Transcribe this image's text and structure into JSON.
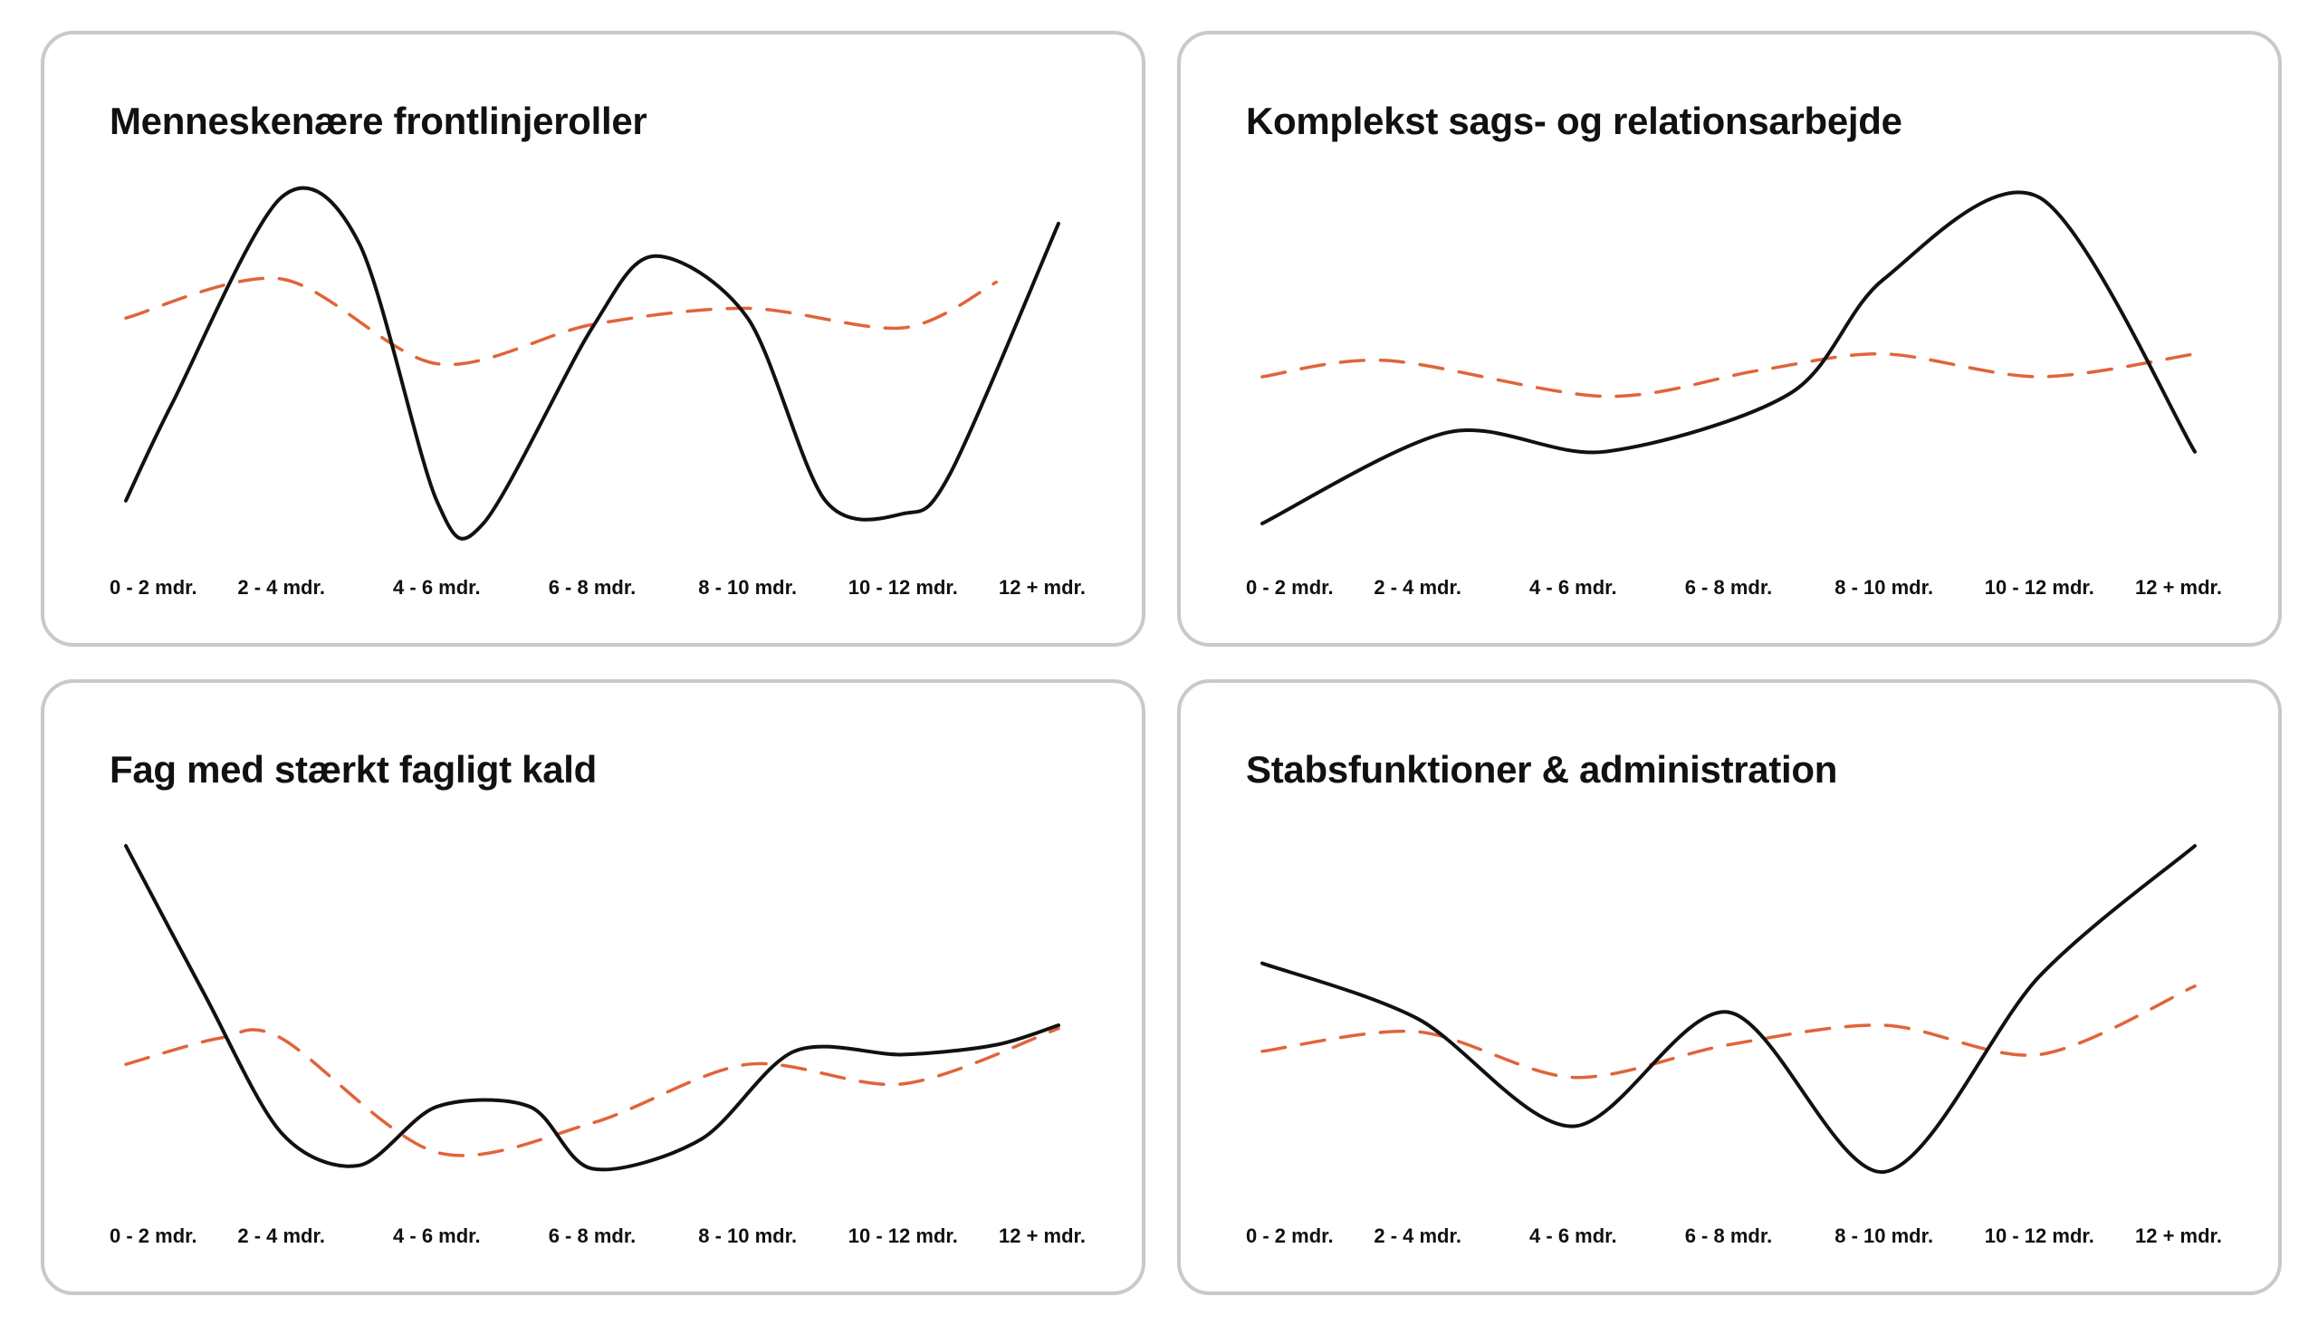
{
  "colors": {
    "solid_line": "#111111",
    "dashed_line": "#E0643A",
    "card_border": "#C9C9C9",
    "background": "#FFFFFF"
  },
  "chart_data": [
    {
      "type": "line",
      "title": "Menneskenære frontlinjeroller",
      "categories": [
        "0 - 2 mdr.",
        "2 - 4 mdr.",
        "4 - 6 mdr.",
        "6 - 8 mdr.",
        "8 - 10 mdr.",
        "10 - 12 mdr.",
        "12 + mdr."
      ],
      "ylim": [
        0,
        100
      ],
      "grid": false,
      "series": [
        {
          "style": "solid",
          "x": [
            0,
            0.3,
            1,
            1.5,
            2,
            2.3,
            3,
            3.4,
            4,
            4.5,
            5,
            5.3,
            6
          ],
          "values": [
            7,
            37,
            100,
            86,
            7,
            0,
            60,
            82,
            63,
            7,
            3,
            15,
            92
          ]
        },
        {
          "style": "dashed",
          "x": [
            0,
            1,
            2,
            3,
            4,
            5,
            5.6
          ],
          "values": [
            63,
            75,
            49,
            61,
            66,
            60,
            74
          ]
        }
      ]
    },
    {
      "type": "line",
      "title": "Komplekst sags- og relationsarbejde",
      "categories": [
        "0 - 2 mdr.",
        "2 - 4 mdr.",
        "4 - 6 mdr.",
        "6 - 8 mdr.",
        "8 - 10 mdr.",
        "10 - 12 mdr.",
        "12 + mdr."
      ],
      "ylim": [
        0,
        100
      ],
      "grid": false,
      "series": [
        {
          "style": "solid",
          "x": [
            0,
            1.2,
            2.2,
            3.4,
            4,
            5,
            6
          ],
          "values": [
            0,
            28,
            22,
            40,
            75,
            100,
            22
          ]
        },
        {
          "style": "dashed",
          "x": [
            0,
            0.8,
            2.2,
            3.2,
            4,
            5,
            6
          ],
          "values": [
            45,
            50,
            39,
            47,
            52,
            45,
            52
          ]
        }
      ]
    },
    {
      "type": "line",
      "title": "Fag med stærkt fagligt kald",
      "categories": [
        "0 - 2 mdr.",
        "2 - 4 mdr.",
        "4 - 6 mdr.",
        "6 - 8 mdr.",
        "8 - 10 mdr.",
        "10 - 12 mdr.",
        "12 + mdr."
      ],
      "ylim": [
        0,
        100
      ],
      "grid": false,
      "series": [
        {
          "style": "solid",
          "x": [
            0,
            0.5,
            1,
            1.5,
            2,
            2.6,
            3,
            3.7,
            4.3,
            5,
            5.6,
            6
          ],
          "values": [
            100,
            55,
            12,
            2,
            20,
            20,
            1,
            10,
            37,
            36,
            39,
            45
          ]
        },
        {
          "style": "dashed",
          "x": [
            0,
            0.6,
            1,
            2,
            3,
            4,
            5,
            6
          ],
          "values": [
            33,
            41,
            41,
            6,
            15,
            33,
            27,
            44
          ]
        }
      ]
    },
    {
      "type": "line",
      "title": "Stabsfunktioner & administration",
      "categories": [
        "0 - 2 mdr.",
        "2 - 4 mdr.",
        "4 - 6 mdr.",
        "6 - 8 mdr.",
        "8 - 10 mdr.",
        "10 - 12 mdr.",
        "12 + mdr."
      ],
      "ylim": [
        0,
        100
      ],
      "grid": false,
      "series": [
        {
          "style": "solid",
          "x": [
            0,
            1,
            2,
            3,
            4,
            5,
            6
          ],
          "values": [
            64,
            47,
            14,
            49,
            0,
            60,
            100
          ]
        },
        {
          "style": "dashed",
          "x": [
            0,
            1,
            2,
            3,
            4,
            5,
            6
          ],
          "values": [
            37,
            43,
            29,
            39,
            45,
            36,
            57
          ]
        }
      ]
    }
  ]
}
